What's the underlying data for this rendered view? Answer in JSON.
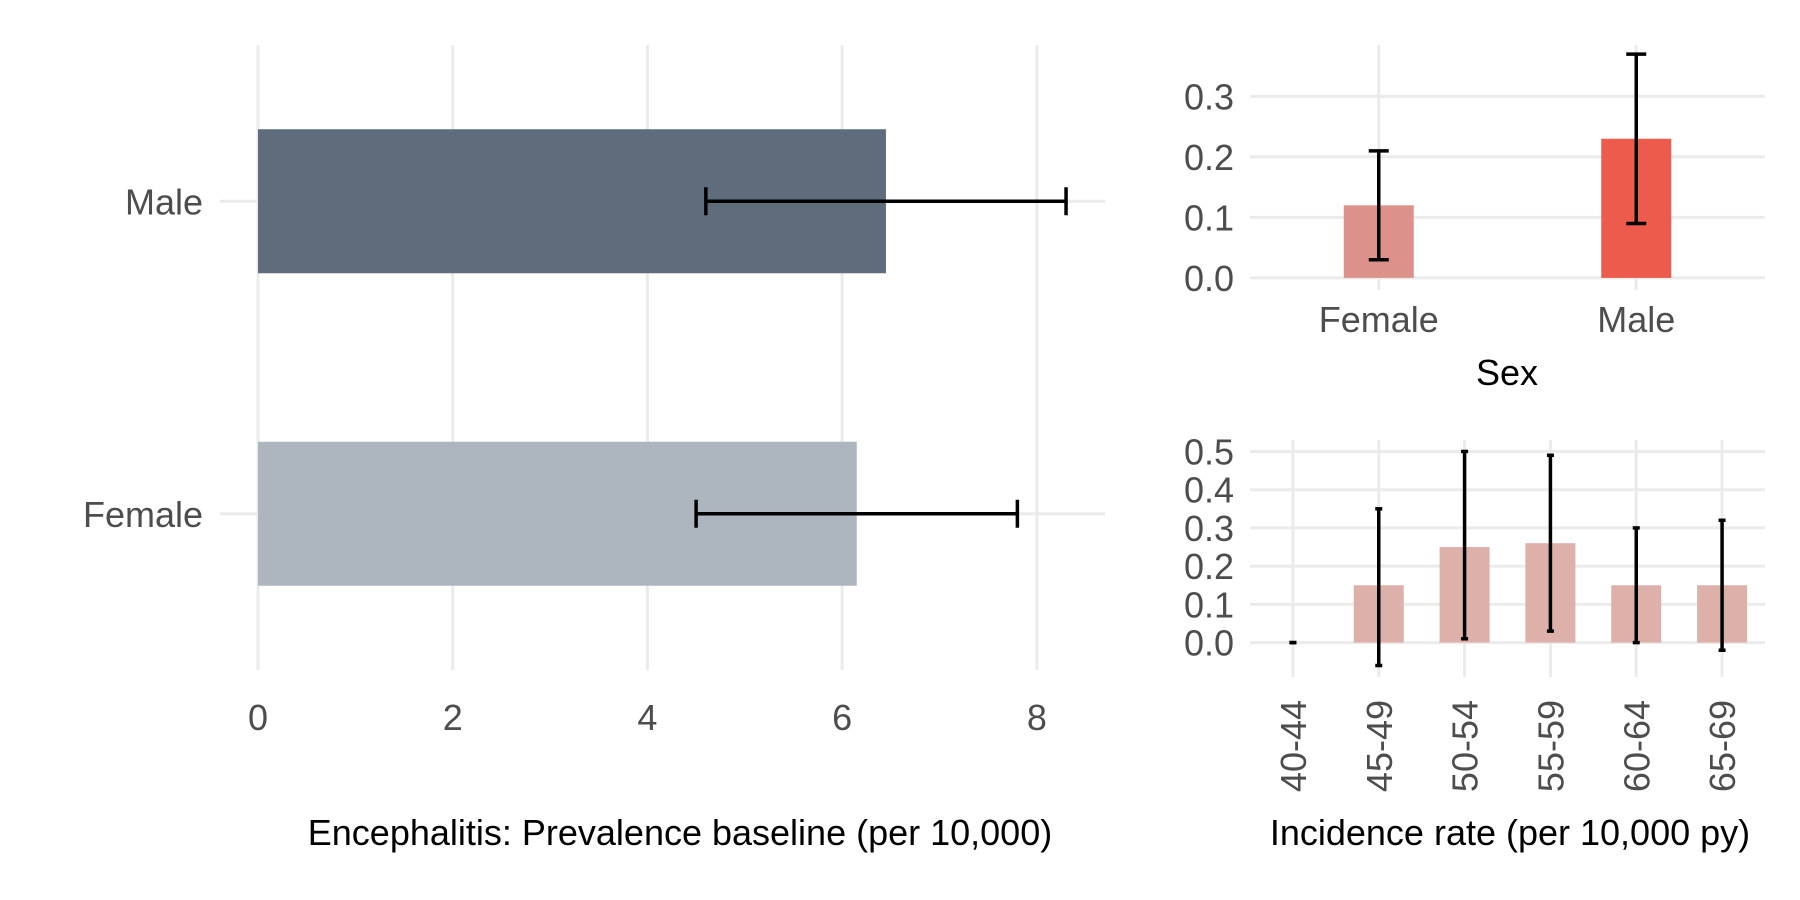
{
  "chart_data": [
    {
      "type": "bar",
      "orientation": "horizontal",
      "categories": [
        "Male",
        "Female"
      ],
      "values": [
        6.45,
        6.15
      ],
      "error_low": [
        4.6,
        4.5
      ],
      "error_high": [
        8.3,
        7.8
      ],
      "colors": [
        "#5e6c7b",
        "#adb5bf"
      ],
      "xlim": [
        0,
        8.7
      ],
      "xticks": [
        "0",
        "2",
        "4",
        "6",
        "8"
      ],
      "xlabel": "Encephalitis: Prevalence baseline (per 10,000)",
      "grid": true
    },
    {
      "type": "bar",
      "categories": [
        "Female",
        "Male"
      ],
      "values": [
        0.12,
        0.23
      ],
      "error_low": [
        0.03,
        0.09
      ],
      "error_high": [
        0.21,
        0.37
      ],
      "colors": [
        "#dc928b",
        "#ed5b4d"
      ],
      "ylim": [
        -0.02,
        0.385
      ],
      "yticks": [
        "0.0",
        "0.1",
        "0.2",
        "0.3"
      ],
      "xlabel": "Sex",
      "grid": true
    },
    {
      "type": "bar",
      "categories": [
        "40-44",
        "45-49",
        "50-54",
        "55-59",
        "60-64",
        "65-69"
      ],
      "values": [
        0,
        0.15,
        0.25,
        0.26,
        0.15,
        0.15
      ],
      "error_low": [
        0,
        -0.06,
        0.01,
        0.03,
        0,
        -0.02
      ],
      "error_high": [
        0,
        0.35,
        0.5,
        0.49,
        0.3,
        0.32
      ],
      "colors": [
        "#ddb0aa"
      ],
      "ylim": [
        -0.09,
        0.53
      ],
      "yticks": [
        "0.0",
        "0.1",
        "0.2",
        "0.3",
        "0.4",
        "0.5"
      ],
      "xlabel": "Incidence rate (per 10,000 py)",
      "grid": true
    }
  ]
}
